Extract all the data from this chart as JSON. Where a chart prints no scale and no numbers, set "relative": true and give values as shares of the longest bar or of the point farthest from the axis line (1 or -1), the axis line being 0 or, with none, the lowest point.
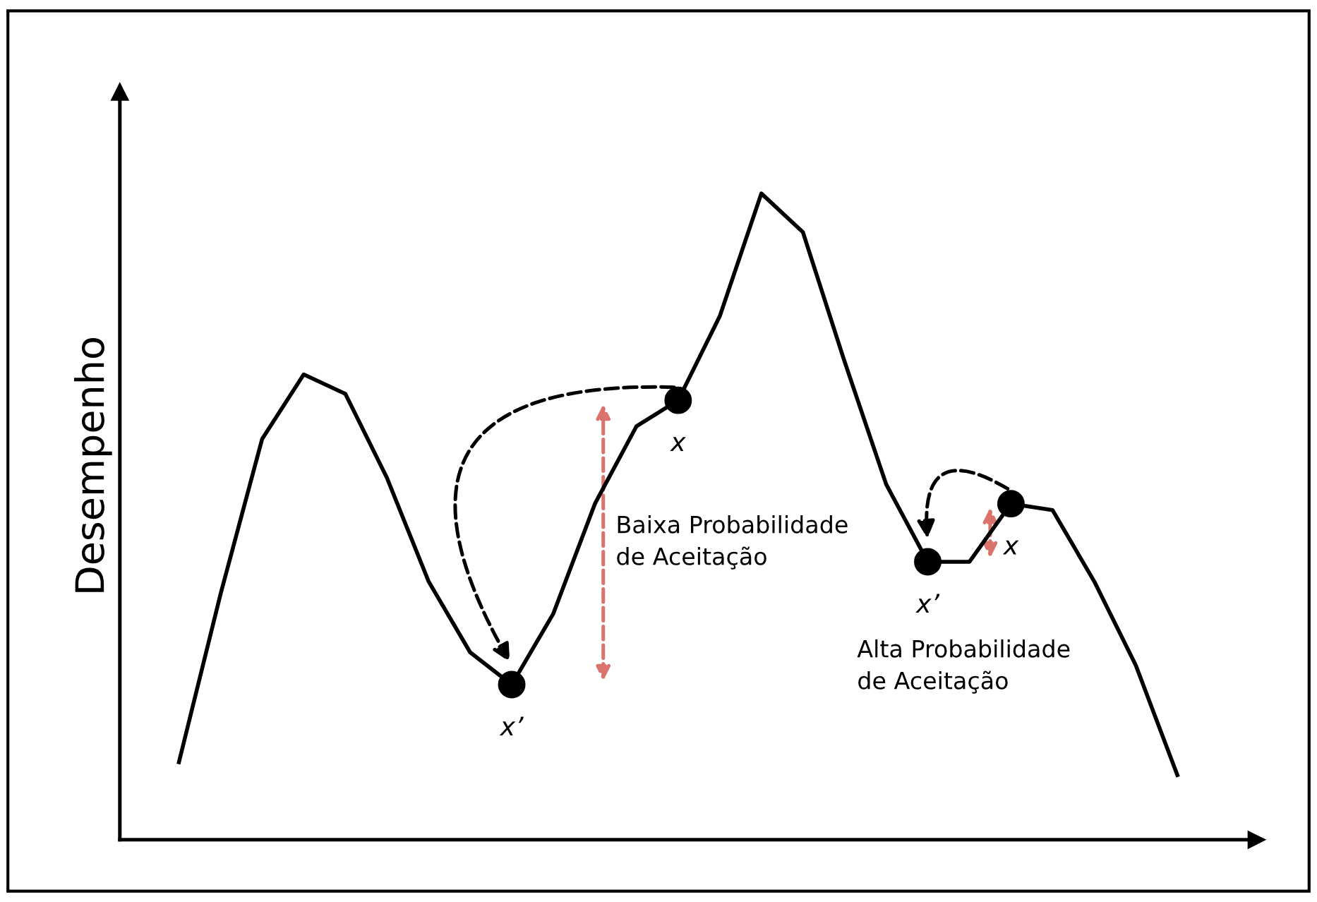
{
  "chart_data": {
    "type": "line",
    "relative": true,
    "ylabel": "Desempenho",
    "categories": [
      null,
      null,
      null,
      null,
      null,
      null,
      null,
      null,
      null,
      null,
      null,
      null,
      null,
      null,
      null,
      null,
      null,
      null,
      null,
      null,
      null,
      null,
      null,
      null,
      null
    ],
    "series": [
      {
        "color": "#000000",
        "values": [
          0.12,
          0.38,
          0.62,
          0.72,
          0.69,
          0.56,
          0.4,
          0.29,
          0.24,
          0.35,
          0.52,
          0.64,
          0.68,
          0.81,
          1.0,
          0.94,
          0.74,
          0.55,
          0.43,
          0.43,
          0.52,
          0.51,
          0.4,
          0.27,
          0.1
        ]
      }
    ],
    "annotations": [
      "x’",
      "x",
      "x’",
      "x",
      "Baixa Probabilidade\nde Aceitação",
      "Alta Probabilidade\nde Aceitação"
    ],
    "legend": false,
    "marker": "none",
    "line_style": "solid"
  }
}
